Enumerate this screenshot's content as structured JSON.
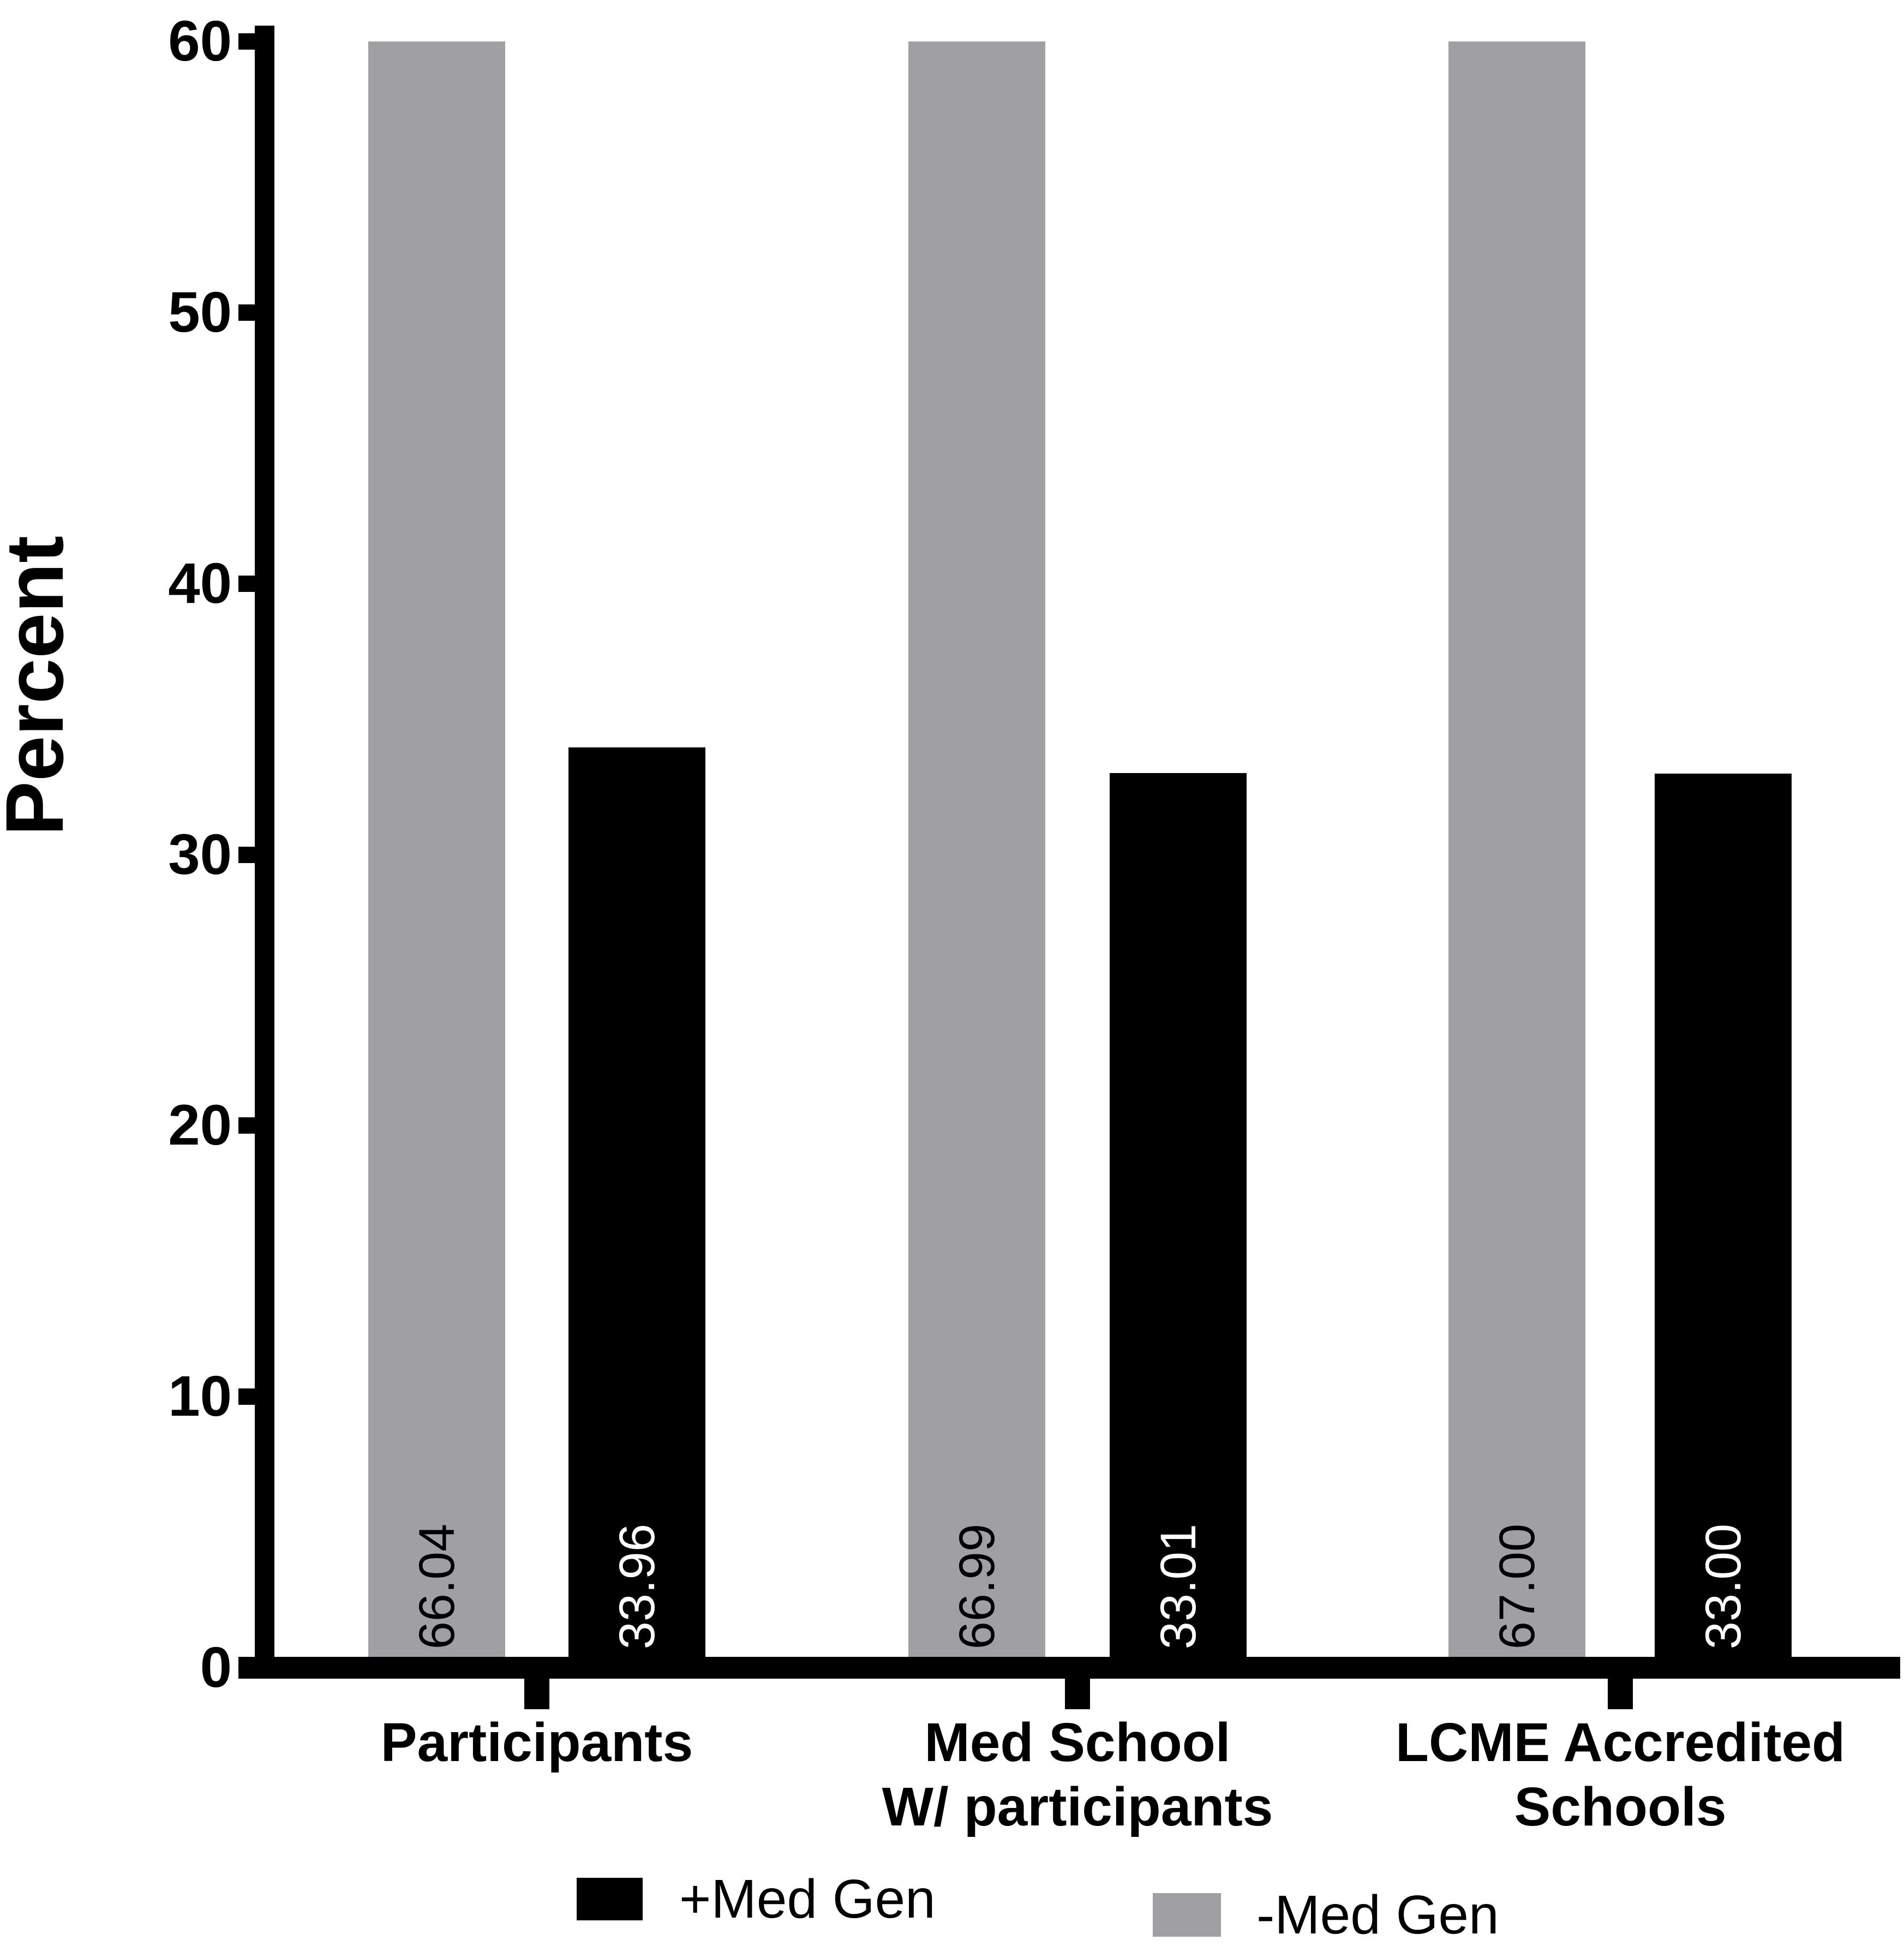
{
  "chart_data": {
    "type": "bar",
    "title": "",
    "xlabel": "",
    "ylabel": "Percent",
    "ylim": [
      0,
      60
    ],
    "yticks": [
      "0",
      "10",
      "20",
      "30",
      "40",
      "50",
      "60"
    ],
    "grid": false,
    "legend_position": "bottom",
    "categories": [
      {
        "lines": [
          "Participants"
        ]
      },
      {
        "lines": [
          "Med School",
          "W/ participants"
        ]
      },
      {
        "lines": [
          "LCME Accredited",
          "Schools"
        ]
      }
    ],
    "series": [
      {
        "name": "-Med Gen",
        "color": "#a0a0a4",
        "label_color": "#000000",
        "values": [
          66.04,
          66.99,
          67.0
        ],
        "labels": [
          "66.04",
          "66.99",
          "67.00"
        ]
      },
      {
        "name": "+Med Gen",
        "color": "#000000",
        "label_color": "#ffffff",
        "values": [
          33.96,
          33.01,
          33.0
        ],
        "labels": [
          "33.96",
          "33.01",
          "33.00"
        ]
      }
    ]
  },
  "legend": {
    "entries": [
      {
        "label": "+Med Gen",
        "color": "#000000"
      },
      {
        "label": "-Med Gen",
        "color": "#a0a0a4"
      }
    ]
  }
}
